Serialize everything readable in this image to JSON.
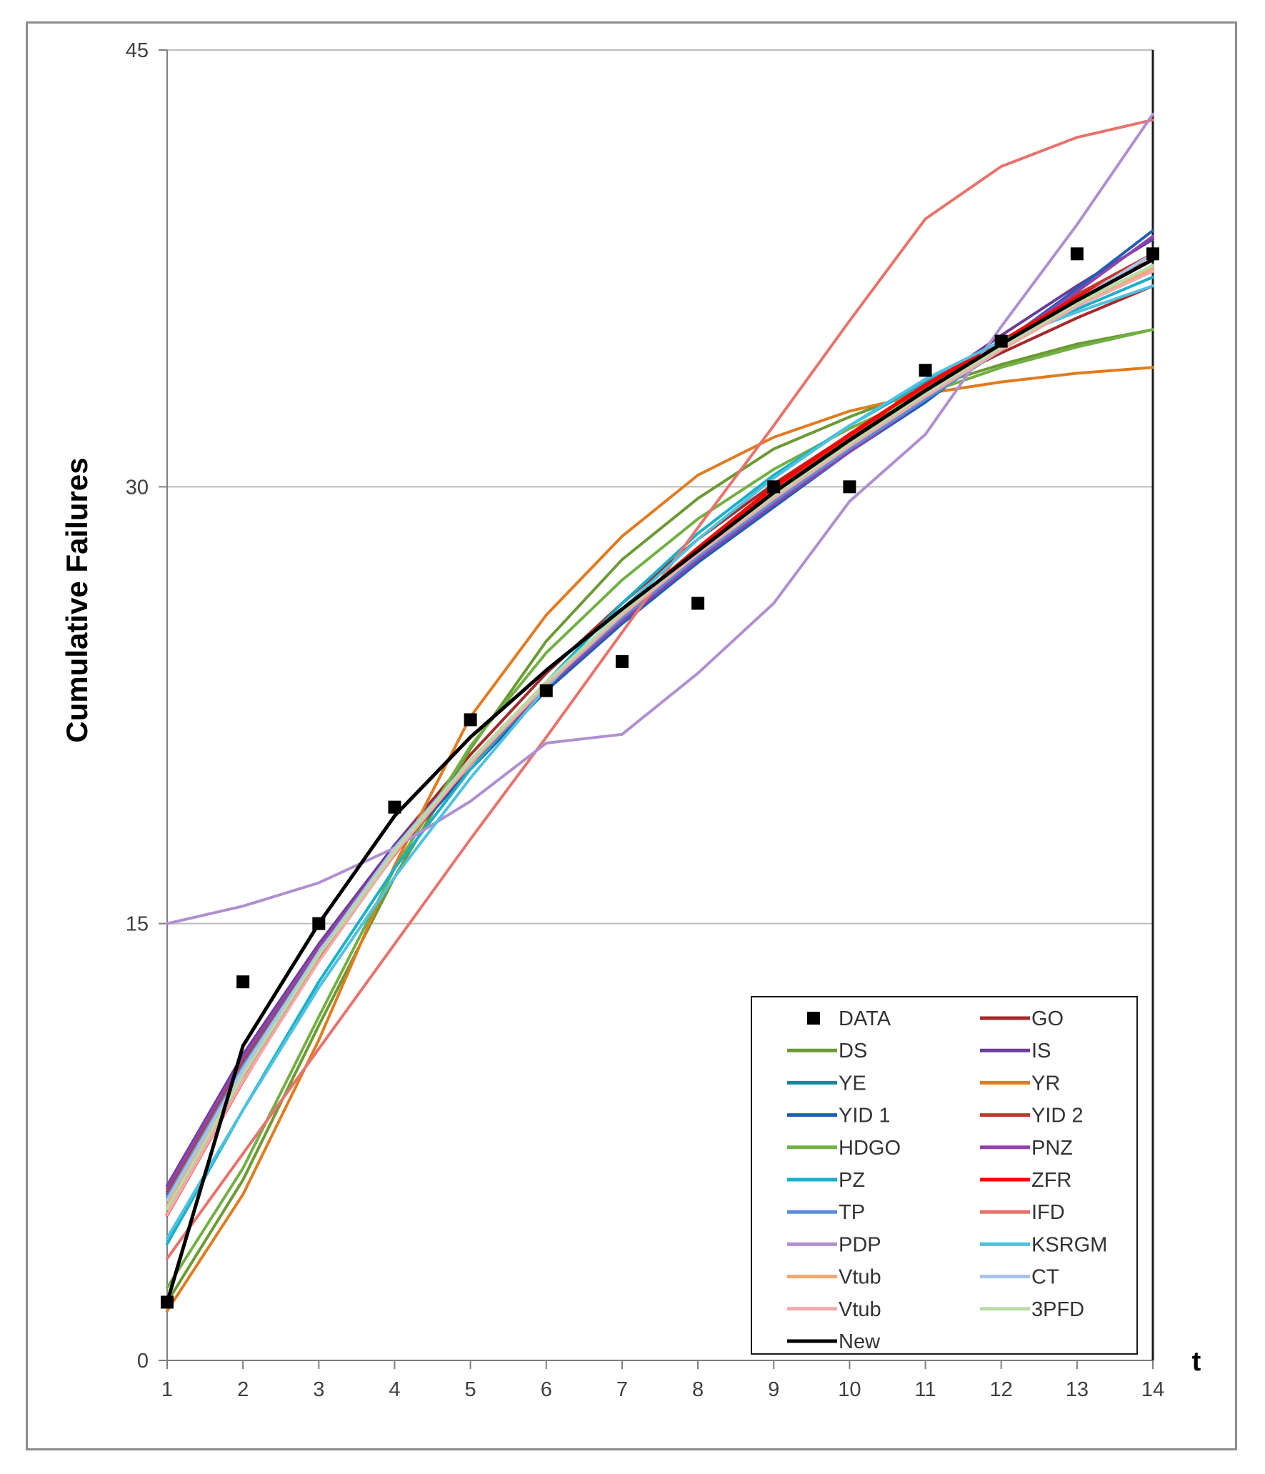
{
  "chart_data": {
    "type": "line",
    "title": "",
    "xlabel": "t",
    "ylabel": "Cumulative Failures",
    "xlim": [
      1,
      14
    ],
    "ylim": [
      0,
      45
    ],
    "grid": "horizontal",
    "legend_position": "bottom-right",
    "x_ticks": [
      "1",
      "2",
      "3",
      "4",
      "5",
      "6",
      "7",
      "8",
      "9",
      "10",
      "11",
      "12",
      "13",
      "14"
    ],
    "y_ticks": [
      {
        "value": 0,
        "label": "0"
      },
      {
        "value": 15,
        "label": "15"
      },
      {
        "value": 30,
        "label": "30"
      },
      {
        "value": 45,
        "label": "45"
      }
    ],
    "x": [
      1,
      2,
      3,
      4,
      5,
      6,
      7,
      8,
      9,
      10,
      11,
      12,
      13,
      14
    ],
    "data_points": {
      "name": "DATA",
      "color": "#000000",
      "values": [
        2,
        13,
        15,
        19,
        22,
        23,
        24,
        26,
        30,
        30,
        34,
        35,
        38,
        38
      ]
    },
    "series": [
      {
        "name": "GO",
        "color": "#a52a2a",
        "width": 4,
        "values": [
          5.8,
          10.3,
          14.2,
          17.7,
          20.8,
          23.6,
          26.0,
          28.2,
          30.1,
          31.8,
          33.3,
          34.6,
          35.8,
          36.9
        ]
      },
      {
        "name": "DS",
        "color": "#6b9a33",
        "width": 4,
        "values": [
          2.0,
          6.2,
          11.5,
          16.6,
          21.0,
          24.7,
          27.5,
          29.6,
          31.3,
          32.4,
          33.4,
          34.2,
          34.9,
          35.4
        ]
      },
      {
        "name": "IS",
        "color": "#6a3d9a",
        "width": 4,
        "values": [
          6.0,
          10.5,
          14.3,
          17.7,
          20.6,
          23.1,
          25.5,
          27.6,
          29.6,
          31.6,
          33.4,
          35.2,
          36.9,
          38.5
        ]
      },
      {
        "name": "YE",
        "color": "#15879a",
        "width": 4,
        "values": [
          5.5,
          10.0,
          14.0,
          17.6,
          20.6,
          23.3,
          25.6,
          27.7,
          29.5,
          31.3,
          33.0,
          34.7,
          36.3,
          37.6
        ]
      },
      {
        "name": "YR",
        "color": "#e07b1f",
        "width": 4,
        "values": [
          1.7,
          5.7,
          11.0,
          17.0,
          22.1,
          25.6,
          28.3,
          30.4,
          31.7,
          32.6,
          33.2,
          33.6,
          33.9,
          34.1
        ]
      },
      {
        "name": "YID 1",
        "color": "#1f5fb4",
        "width": 4,
        "values": [
          5.7,
          10.2,
          14.0,
          17.4,
          20.3,
          23.0,
          25.3,
          27.4,
          29.3,
          31.2,
          32.9,
          34.9,
          36.8,
          38.8
        ]
      },
      {
        "name": "YID 2",
        "color": "#c0392b",
        "width": 4,
        "values": [
          5.8,
          10.3,
          14.2,
          17.6,
          20.6,
          23.3,
          25.7,
          27.9,
          29.9,
          31.7,
          33.4,
          35.0,
          36.6,
          38.0
        ]
      },
      {
        "name": "HDGO",
        "color": "#72b043",
        "width": 4,
        "values": [
          2.5,
          6.6,
          11.8,
          16.9,
          21.1,
          24.3,
          26.8,
          28.9,
          30.6,
          32.0,
          33.2,
          34.1,
          34.8,
          35.4
        ]
      },
      {
        "name": "PNZ",
        "color": "#8e44ad",
        "width": 4,
        "values": [
          5.9,
          10.4,
          14.2,
          17.6,
          20.5,
          23.1,
          25.4,
          27.5,
          29.4,
          31.2,
          33.0,
          34.9,
          36.7,
          38.6
        ]
      },
      {
        "name": "PZ",
        "color": "#17b0c9",
        "width": 4,
        "values": [
          4.0,
          8.6,
          13.0,
          16.9,
          20.3,
          23.3,
          26.0,
          28.4,
          30.4,
          32.1,
          33.6,
          35.0,
          36.1,
          37.2
        ]
      },
      {
        "name": "ZFR",
        "color": "#ff0000",
        "width": 5,
        "values": [
          5.0,
          9.6,
          13.8,
          17.4,
          20.5,
          23.2,
          25.7,
          27.9,
          30.0,
          31.8,
          33.5,
          35.0,
          36.5,
          37.8
        ]
      },
      {
        "name": "TP",
        "color": "#5b8fd6",
        "width": 4,
        "values": [
          5.6,
          10.1,
          14.0,
          17.5,
          20.5,
          23.2,
          25.5,
          27.6,
          29.5,
          31.3,
          33.0,
          34.7,
          36.3,
          38.0
        ]
      },
      {
        "name": "IFD",
        "color": "#e8736c",
        "width": 4,
        "values": [
          3.5,
          7.1,
          10.7,
          14.3,
          17.9,
          21.4,
          25.0,
          28.6,
          32.1,
          35.7,
          39.2,
          41.0,
          42.0,
          42.6
        ]
      },
      {
        "name": "PDP",
        "color": "#b08fd0",
        "width": 4,
        "values": [
          15.0,
          15.6,
          16.4,
          17.6,
          19.2,
          21.2,
          21.5,
          23.6,
          26.0,
          29.5,
          31.8,
          35.5,
          39.0,
          42.8
        ]
      },
      {
        "name": "KSRGM",
        "color": "#4fc1e0",
        "width": 4,
        "values": [
          4.2,
          8.6,
          12.8,
          16.6,
          20.0,
          23.1,
          25.8,
          28.2,
          30.3,
          32.1,
          33.7,
          35.0,
          36.0,
          36.9
        ]
      },
      {
        "name": "Vtub",
        "color": "#f9a56f",
        "width": 4,
        "values": [
          5.3,
          9.8,
          13.9,
          17.5,
          20.6,
          23.3,
          25.7,
          27.8,
          29.7,
          31.5,
          33.2,
          34.8,
          36.3,
          37.5
        ]
      },
      {
        "name": "CT",
        "color": "#a9c4e8",
        "width": 4,
        "values": [
          5.5,
          10.0,
          14.0,
          17.6,
          20.6,
          23.3,
          25.7,
          27.8,
          29.7,
          31.5,
          33.2,
          34.8,
          36.4,
          38.0
        ]
      },
      {
        "name": "Vtub",
        "color": "#f2aaaa",
        "width": 4,
        "values": [
          5.0,
          9.6,
          13.7,
          17.4,
          20.5,
          23.2,
          25.6,
          27.7,
          29.6,
          31.4,
          33.1,
          34.7,
          36.2,
          37.4
        ]
      },
      {
        "name": "3PFD",
        "color": "#b8dba5",
        "width": 4,
        "values": [
          5.2,
          9.8,
          13.9,
          17.5,
          20.6,
          23.3,
          25.7,
          27.8,
          29.7,
          31.5,
          33.2,
          34.8,
          36.3,
          37.6
        ]
      },
      {
        "name": "New",
        "color": "#000000",
        "width": 5,
        "values": [
          2.0,
          10.8,
          15.0,
          18.7,
          21.4,
          23.7,
          25.8,
          27.8,
          29.8,
          31.6,
          33.3,
          34.9,
          36.4,
          37.8
        ]
      }
    ],
    "legend": [
      {
        "label": "DATA",
        "marker": "square",
        "color": "#000000"
      },
      {
        "label": "GO",
        "color": "#a52a2a"
      },
      {
        "label": "DS",
        "color": "#6b9a33"
      },
      {
        "label": "IS",
        "color": "#6a3d9a"
      },
      {
        "label": "YE",
        "color": "#15879a"
      },
      {
        "label": "YR",
        "color": "#e07b1f"
      },
      {
        "label": " YID 1",
        "color": "#1f5fb4"
      },
      {
        "label": "YID 2",
        "color": "#c0392b"
      },
      {
        "label": "HDGO",
        "color": "#72b043"
      },
      {
        "label": "PNZ",
        "color": "#8e44ad"
      },
      {
        "label": "PZ",
        "color": "#17b0c9"
      },
      {
        "label": "ZFR",
        "color": "#ff0000"
      },
      {
        "label": "TP",
        "color": "#5b8fd6"
      },
      {
        "label": "IFD",
        "color": "#e8736c"
      },
      {
        "label": "PDP",
        "color": "#b08fd0"
      },
      {
        "label": "KSRGM",
        "color": "#4fc1e0"
      },
      {
        "label": "Vtub",
        "color": "#f9a56f"
      },
      {
        "label": "CT",
        "color": "#a9c4e8"
      },
      {
        "label": "Vtub",
        "color": "#f2aaaa"
      },
      {
        "label": "3PFD",
        "color": "#b8dba5"
      },
      {
        "label": "New",
        "color": "#000000"
      }
    ]
  }
}
